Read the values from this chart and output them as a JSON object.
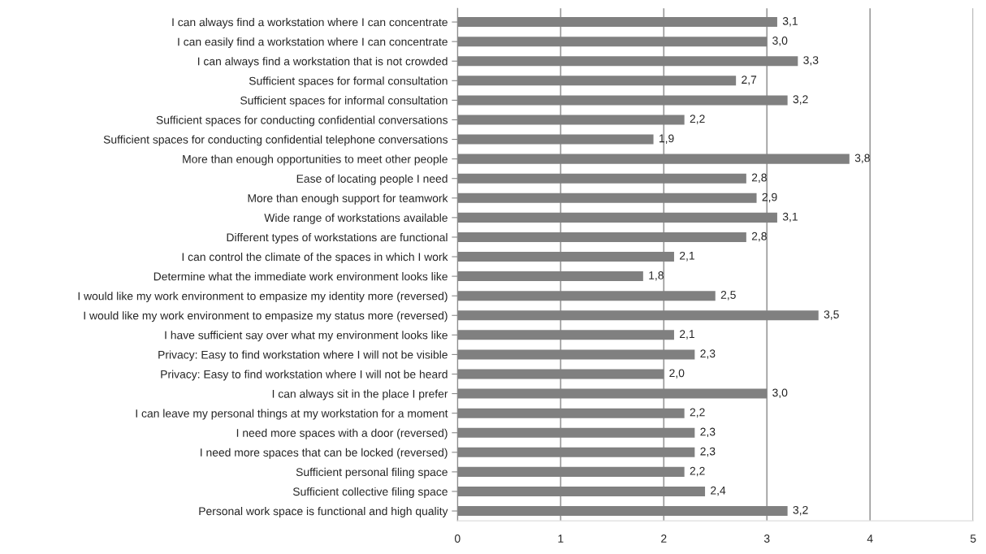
{
  "chart_data": {
    "type": "bar",
    "orientation": "horizontal",
    "categories": [
      "I can always find a workstation where I can concentrate",
      "I can easily find a workstation where I can concentrate",
      "I can always find a workstation that is not crowded",
      "Sufficient spaces for formal consultation",
      "Sufficient spaces for informal consultation",
      "Sufficient spaces for conducting confidential conversations",
      "Sufficient spaces for conducting confidential telephone conversations",
      "More than enough opportunities to meet other people",
      "Ease of locating people I need",
      "More than enough support for teamwork",
      "Wide range of workstations available",
      "Different types of workstations are functional",
      "I can control the climate of the spaces in which I work",
      "Determine what the immediate work environment looks like",
      "I would like my work environment to empasize my identity more (reversed)",
      "I would like my work environment to empasize my status more (reversed)",
      "I have sufficient say over what my environment looks like",
      "Privacy: Easy to find workstation where I will not be visible",
      "Privacy: Easy to find workstation where I will not be heard",
      "I can always sit in the place I prefer",
      "I can leave my personal things at my workstation for a moment",
      "I need more spaces with a door (reversed)",
      "I need more spaces that can be locked (reversed)",
      "Sufficient personal filing space",
      "Sufficient collective filing space",
      "Personal work space is functional and high quality"
    ],
    "values": [
      3.1,
      3.0,
      3.3,
      2.7,
      3.2,
      2.2,
      1.9,
      3.8,
      2.8,
      2.9,
      3.1,
      2.8,
      2.1,
      1.8,
      2.5,
      3.5,
      2.1,
      2.3,
      2.0,
      3.0,
      2.2,
      2.3,
      2.3,
      2.2,
      2.4,
      3.2
    ],
    "value_labels": [
      "3,1",
      "3,0",
      "3,3",
      "2,7",
      "3,2",
      "2,2",
      "1,9",
      "3,8",
      "2,8",
      "2,9",
      "3,1",
      "2,8",
      "2,1",
      "1,8",
      "2,5",
      "3,5",
      "2,1",
      "2,3",
      "2,0",
      "3,0",
      "2,2",
      "2,3",
      "2,3",
      "2,2",
      "2,4",
      "3,2"
    ],
    "color": "#808080",
    "xlim": [
      0,
      5
    ],
    "xticks": [
      0,
      1,
      2,
      3,
      4,
      5
    ],
    "grid": "x",
    "legend": false
  }
}
